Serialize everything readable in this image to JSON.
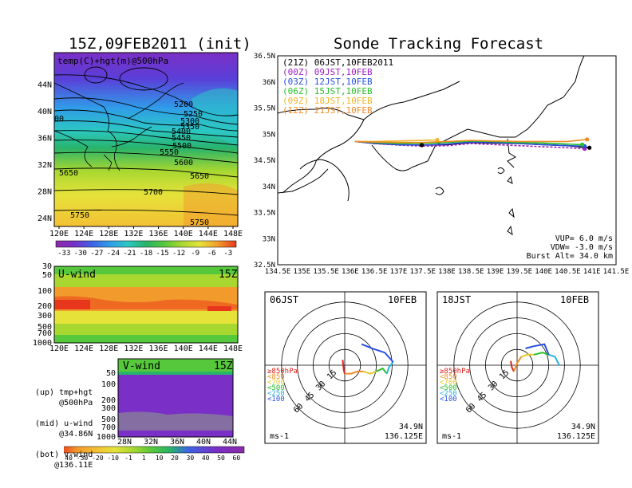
{
  "left_title": "15Z,09FEB2011 (init)",
  "right_title": "Sonde Tracking Forecast",
  "colors": {
    "gradient": [
      "#7a2fc6",
      "#5a3fd8",
      "#3d64e6",
      "#2f9de8",
      "#2cc7c2",
      "#29b36a",
      "#56c83b",
      "#a8d830",
      "#e6e23a",
      "#f3c033",
      "#f29a2b",
      "#ee6a23",
      "#e8361c"
    ],
    "wind_gradient": [
      "#7a2fc6",
      "#3d64e6",
      "#29b36a",
      "#56c83b",
      "#a8d830",
      "#e6e23a",
      "#f3c033",
      "#f29a2b",
      "#ee6a23",
      "#e8361c"
    ]
  },
  "chart_data": [
    {
      "type": "heatmap",
      "name": "map-500hPa",
      "label": "temp(C)+hgt(m)@500hPa",
      "x_ticks": [
        "120E",
        "124E",
        "128E",
        "132E",
        "136E",
        "140E",
        "144E",
        "148E"
      ],
      "y_ticks": [
        "24N",
        "28N",
        "32N",
        "36N",
        "40N",
        "44N"
      ],
      "colorbar": [
        "-33",
        "-30",
        "-27",
        "-24",
        "-21",
        "-18",
        "-15",
        "-12",
        "-9",
        "-6",
        "-3"
      ],
      "contour_labels": [
        "5200",
        "5250",
        "5300",
        "5350",
        "5400",
        "5450",
        "5500",
        "5550",
        "5600",
        "5650",
        "5650",
        "5700",
        "5750",
        "5750",
        "00"
      ]
    },
    {
      "type": "heatmap",
      "name": "u-wind",
      "label": "U-wind",
      "time": "15Z",
      "x_ticks": [
        "120E",
        "124E",
        "128E",
        "132E",
        "136E",
        "140E",
        "144E",
        "148E"
      ],
      "y_ticks": [
        "30",
        "50",
        "100",
        "200",
        "300",
        "500",
        "700",
        "1000"
      ]
    },
    {
      "type": "heatmap",
      "name": "v-wind",
      "label": "V-wind",
      "time": "15Z",
      "x_ticks": [
        "28N",
        "32N",
        "36N",
        "40N",
        "44N"
      ],
      "y_ticks": [
        "50",
        "100",
        "200",
        "300",
        "500",
        "700",
        "1000"
      ],
      "colorbar": [
        "-40",
        "-30",
        "-20",
        "-10",
        "-1",
        "1",
        "10",
        "20",
        "30",
        "40",
        "50",
        "60"
      ]
    },
    {
      "type": "line",
      "name": "track-map",
      "x_ticks": [
        "134.5E",
        "135E",
        "135.5E",
        "136E",
        "136.5E",
        "137E",
        "137.5E",
        "138E",
        "138.5E",
        "139E",
        "139.5E",
        "140E",
        "140.5E",
        "141E",
        "141.5E"
      ],
      "y_ticks": [
        "32.5N",
        "33N",
        "33.5N",
        "34N",
        "34.5N",
        "35N",
        "35.5N",
        "36N",
        "36.5N"
      ],
      "xlim": [
        134.5,
        141.5
      ],
      "ylim": [
        32.5,
        36.5
      ],
      "legend": [
        {
          "text": "(21Z) 06JST,10FEB2011",
          "color": "#000000"
        },
        {
          "text": "(00Z) 09JST,10FEB",
          "color": "#a020c8"
        },
        {
          "text": "(03Z) 12JST,10FEB",
          "color": "#2850e0"
        },
        {
          "text": "(06Z) 15JST,10FEB",
          "color": "#28c028"
        },
        {
          "text": "(09Z) 18JST,10FEB",
          "color": "#f0b428"
        },
        {
          "text": "(12Z) 21JST,10FEB",
          "color": "#f08c28"
        }
      ],
      "series": [
        {
          "name": "(21Z) 06JST,10FEB2011",
          "color": "#000000",
          "dashed": false,
          "x": [
            136.1,
            136.5,
            137.0,
            137.5,
            138.0,
            138.5,
            139.0,
            139.5,
            140.0,
            140.5,
            140.95
          ],
          "y": [
            34.86,
            34.82,
            34.8,
            34.79,
            34.8,
            34.84,
            34.83,
            34.82,
            34.8,
            34.78,
            34.74
          ]
        },
        {
          "name": "(00Z) 09JST,10FEB",
          "color": "#a020c8",
          "dashed": true,
          "x": [
            136.1,
            136.5,
            137.0,
            137.5,
            138.0,
            138.5,
            139.0,
            139.5,
            140.0,
            140.5,
            140.85
          ],
          "y": [
            34.86,
            34.82,
            34.79,
            34.77,
            34.78,
            34.82,
            34.8,
            34.78,
            34.76,
            34.74,
            34.72
          ]
        },
        {
          "name": "(03Z) 12JST,10FEB",
          "color": "#2850e0",
          "dashed": false,
          "x": [
            136.1,
            136.5,
            137.0,
            137.5,
            138.0,
            138.5,
            139.0,
            139.5,
            140.0,
            140.5,
            140.85
          ],
          "y": [
            34.86,
            34.83,
            34.8,
            34.79,
            34.81,
            34.85,
            34.84,
            34.82,
            34.8,
            34.78,
            34.77
          ]
        },
        {
          "name": "(06Z) 15JST,10FEB",
          "color": "#28c028",
          "dashed": false,
          "x": [
            136.1,
            136.5,
            137.0,
            137.5,
            138.0,
            138.5,
            139.0,
            139.5,
            140.0,
            140.5,
            140.8
          ],
          "y": [
            34.86,
            34.84,
            34.82,
            34.82,
            34.84,
            34.87,
            34.86,
            34.84,
            34.83,
            34.81,
            34.8
          ]
        },
        {
          "name": "(09Z) 18JST,10FEB",
          "color": "#f0b428",
          "dashed": false,
          "x": [
            136.1,
            136.5,
            137.0,
            137.5,
            137.8
          ],
          "y": [
            34.86,
            34.86,
            34.87,
            34.88,
            34.89
          ]
        },
        {
          "name": "(12Z) 21JST,10FEB",
          "color": "#f08c28",
          "dashed": false,
          "x": [
            136.1,
            136.5,
            137.0,
            137.5,
            138.0,
            138.5,
            139.0,
            139.5,
            140.0,
            140.5,
            140.9
          ],
          "y": [
            34.86,
            34.85,
            34.84,
            34.84,
            34.86,
            34.88,
            34.87,
            34.86,
            34.86,
            34.86,
            34.9
          ]
        }
      ],
      "annotations": [
        "VUP= 6.0 m/s",
        "VDW= -3.0 m/s",
        "Burst Alt= 34.0 km"
      ]
    },
    {
      "type": "line",
      "name": "hodograph-06JST",
      "time": "06JST",
      "date": "10FEB",
      "ring_labels": [
        "15",
        "30",
        "45",
        "60"
      ],
      "units": "ms-1",
      "location": [
        "34.9N",
        "136.125E"
      ],
      "levels": [
        {
          "text": "≥850hPa",
          "color": "#e0201c"
        },
        {
          "text": "<850",
          "color": "#f08c28"
        },
        {
          "text": "<700",
          "color": "#e6c82a"
        },
        {
          "text": "<500",
          "color": "#28c028"
        },
        {
          "text": "<250",
          "color": "#28b4e0"
        },
        {
          "text": "<100",
          "color": "#2850e0"
        }
      ],
      "segments": [
        {
          "color": "#e0201c",
          "u": [
            -2,
            -1,
            0
          ],
          "v": [
            5,
            -4,
            -8
          ]
        },
        {
          "color": "#f08c28",
          "u": [
            0,
            6,
            12,
            18
          ],
          "v": [
            -8,
            -8,
            -6,
            -6
          ]
        },
        {
          "color": "#e6c82a",
          "u": [
            18,
            24,
            30
          ],
          "v": [
            -6,
            -8,
            -6
          ]
        },
        {
          "color": "#28c028",
          "u": [
            30,
            36,
            40
          ],
          "v": [
            -6,
            -3,
            -8
          ]
        },
        {
          "color": "#28b4e0",
          "u": [
            40,
            42,
            46
          ],
          "v": [
            -8,
            -2,
            3
          ]
        },
        {
          "color": "#2850e0",
          "u": [
            46,
            38,
            26,
            16
          ],
          "v": [
            3,
            12,
            16,
            20
          ]
        }
      ]
    },
    {
      "type": "line",
      "name": "hodograph-18JST",
      "time": "18JST",
      "date": "10FEB",
      "ring_labels": [
        "15",
        "30",
        "45",
        "60"
      ],
      "units": "ms-1",
      "location": [
        "34.9N",
        "136.125E"
      ],
      "levels": [
        {
          "text": "≥850hPa",
          "color": "#e0201c"
        },
        {
          "text": "<850",
          "color": "#f08c28"
        },
        {
          "text": "<700",
          "color": "#e6c82a"
        },
        {
          "text": "<500",
          "color": "#28c028"
        },
        {
          "text": "<250",
          "color": "#28b4e0"
        },
        {
          "text": "<100",
          "color": "#2850e0"
        }
      ],
      "segments": [
        {
          "color": "#e0201c",
          "u": [
            -6,
            -5,
            -3
          ],
          "v": [
            4,
            -2,
            -6
          ]
        },
        {
          "color": "#f08c28",
          "u": [
            -3,
            0,
            4
          ],
          "v": [
            -6,
            2,
            8
          ]
        },
        {
          "color": "#e6c82a",
          "u": [
            4,
            10,
            16
          ],
          "v": [
            8,
            10,
            10
          ]
        },
        {
          "color": "#28c028",
          "u": [
            16,
            24,
            30
          ],
          "v": [
            10,
            12,
            10
          ]
        },
        {
          "color": "#28b4e0",
          "u": [
            30,
            36,
            40
          ],
          "v": [
            10,
            8,
            0
          ]
        },
        {
          "color": "#2850e0",
          "u": [
            30,
            26,
            16,
            8
          ],
          "v": [
            10,
            20,
            18,
            16
          ]
        }
      ]
    }
  ],
  "notes": [
    "(up) tmp+hgt",
    "     @500hPa",
    "",
    "(mid) u-wind",
    "     @34.86N",
    "",
    "(bot) v-wind",
    "    @136.11E"
  ]
}
